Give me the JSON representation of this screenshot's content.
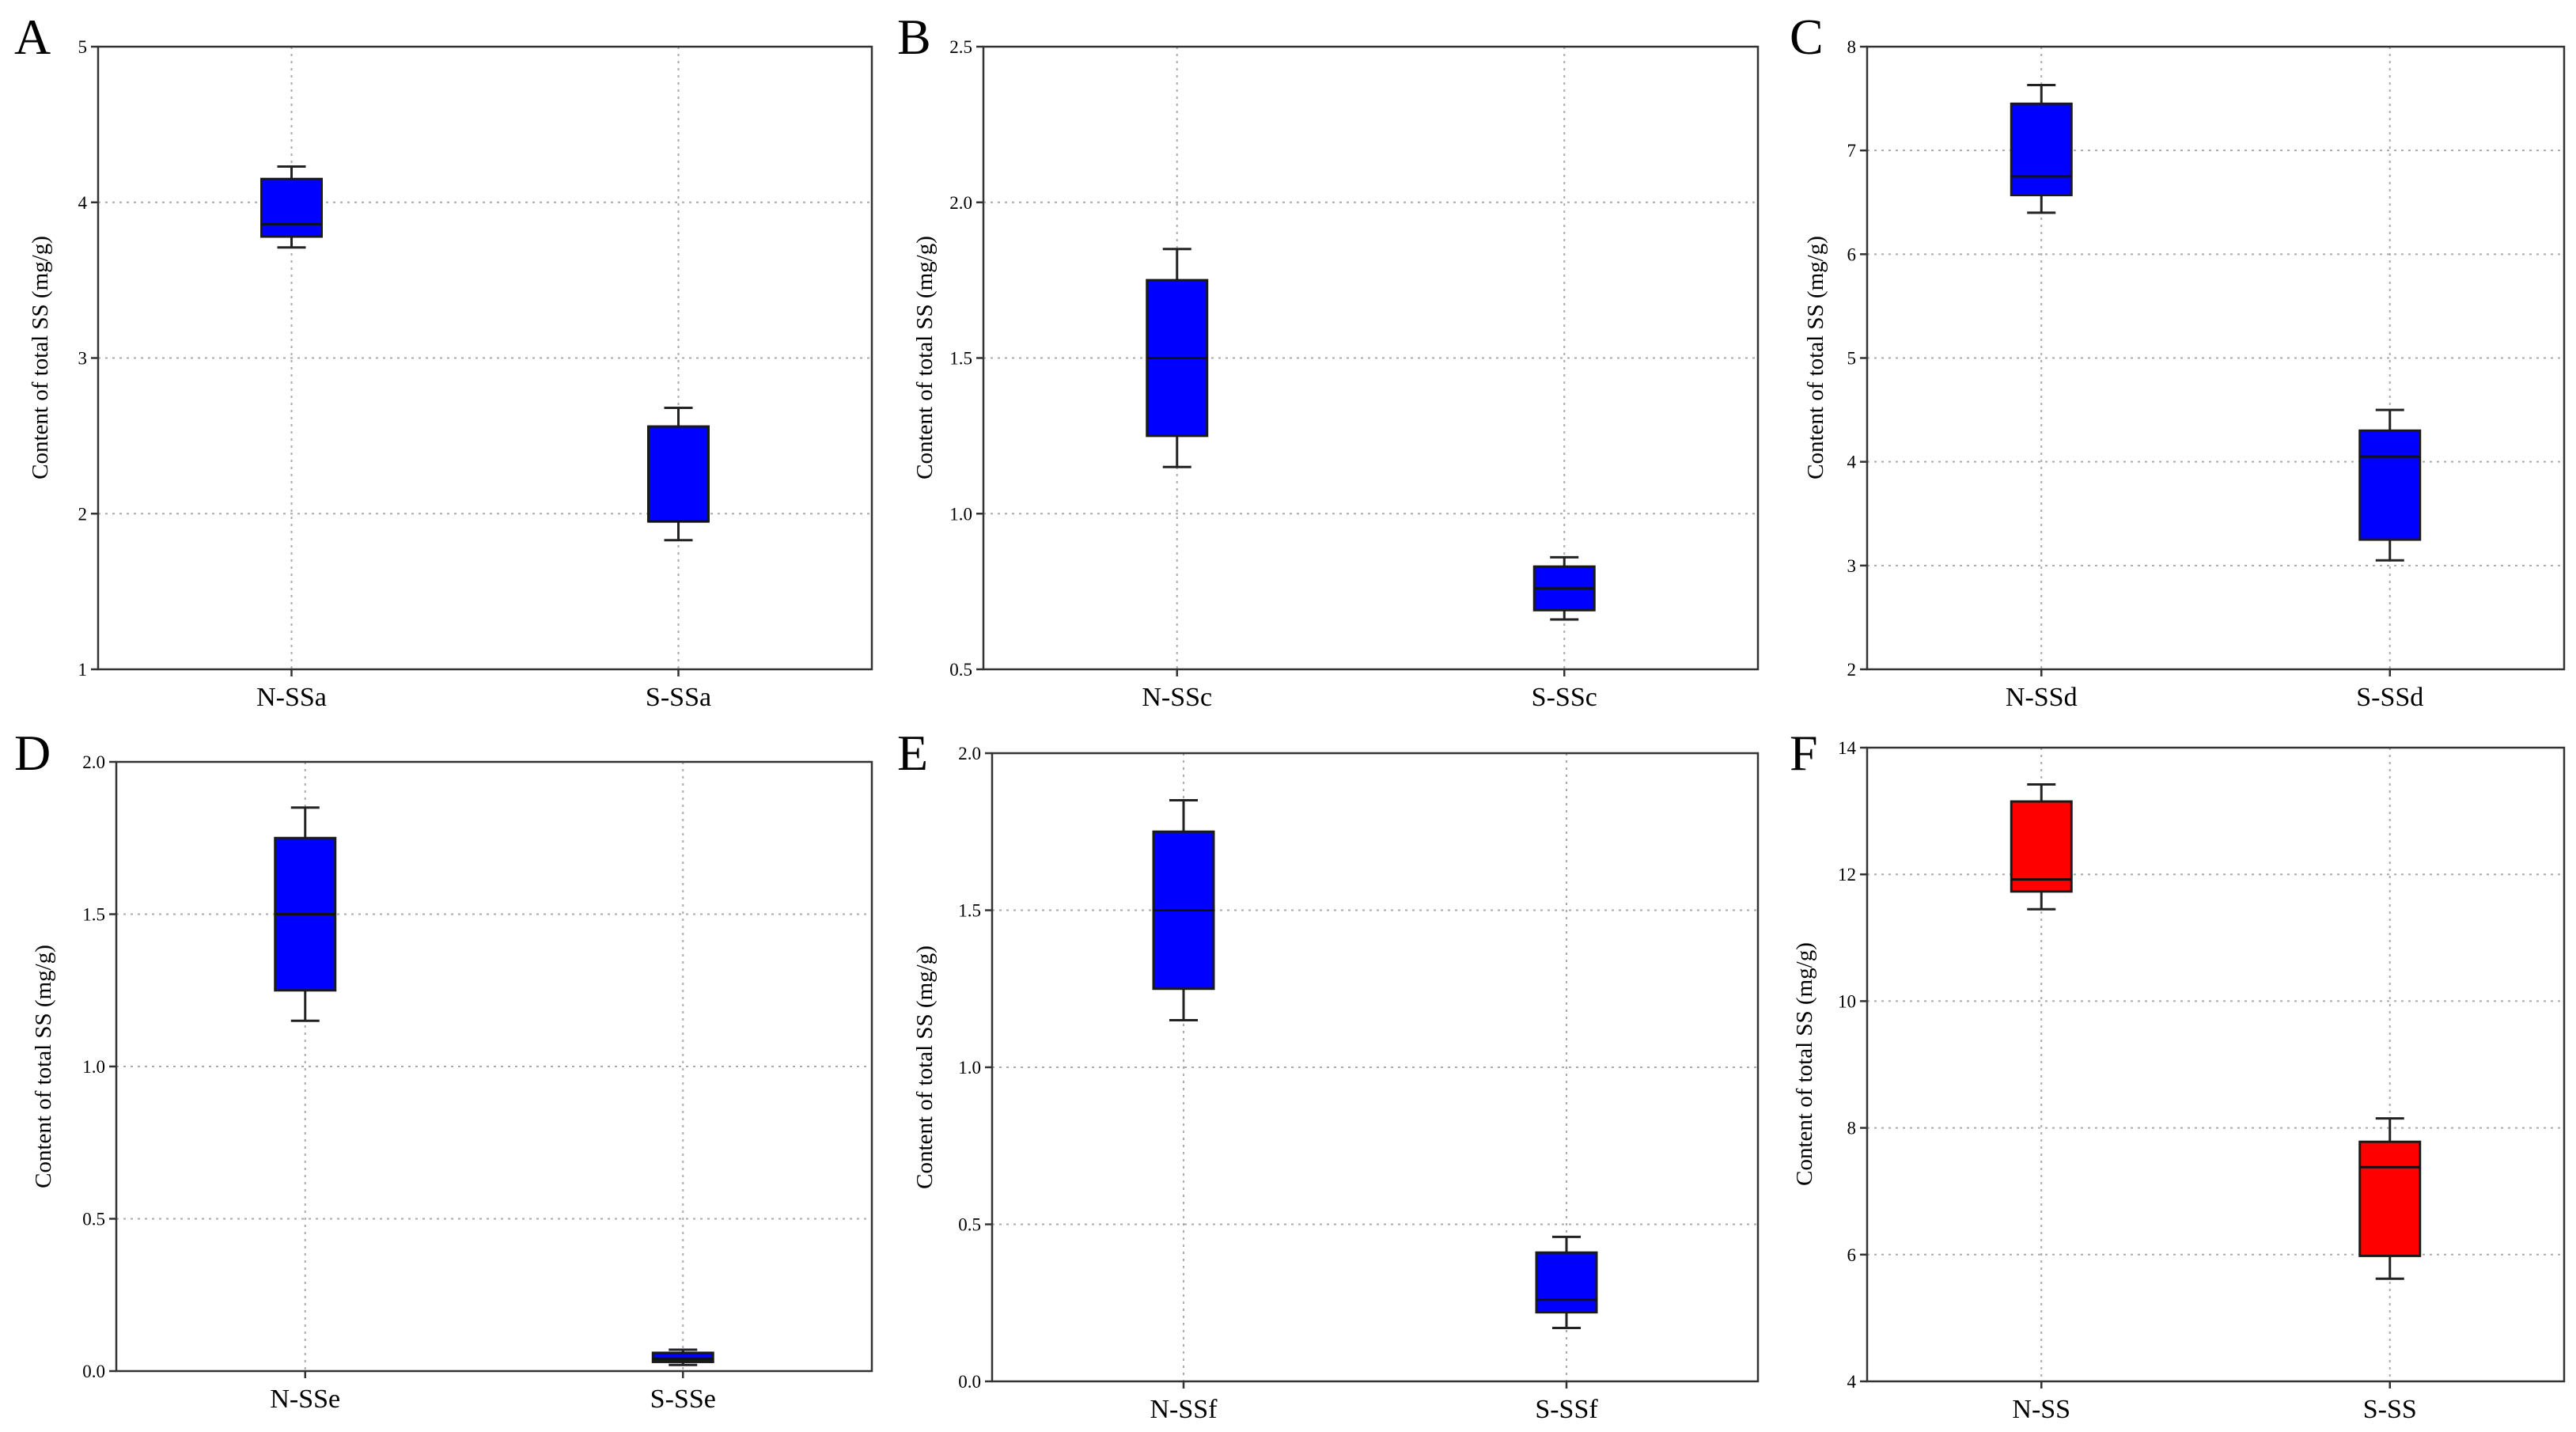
{
  "chart_data": [
    {
      "panel": "A",
      "type": "box",
      "ylabel": "Content of total SS (mg/g)",
      "ylim": [
        1,
        5
      ],
      "yticks": [
        1,
        2,
        3,
        4,
        5
      ],
      "yticklabels": [
        "1",
        "2",
        "3",
        "4",
        "5"
      ],
      "categories": [
        "N-SSa",
        "S-SSa"
      ],
      "box_color": "#0000ff",
      "boxes": [
        {
          "min": 3.71,
          "q1": 3.78,
          "median": 3.86,
          "q3": 4.15,
          "max": 4.23
        },
        {
          "min": 1.83,
          "q1": 1.95,
          "median": 1.95,
          "q3": 2.56,
          "max": 2.68
        }
      ]
    },
    {
      "panel": "B",
      "type": "box",
      "ylabel": "Content of total SS (mg/g)",
      "ylim": [
        0.5,
        2.5
      ],
      "yticks": [
        0.5,
        1.0,
        1.5,
        2.0,
        2.5
      ],
      "yticklabels": [
        "0.5",
        "1.0",
        "1.5",
        "2.0",
        "2.5"
      ],
      "categories": [
        "N-SSc",
        "S-SSc"
      ],
      "box_color": "#0000ff",
      "boxes": [
        {
          "min": 1.15,
          "q1": 1.25,
          "median": 1.5,
          "q3": 1.75,
          "max": 1.85
        },
        {
          "min": 0.66,
          "q1": 0.69,
          "median": 0.76,
          "q3": 0.83,
          "max": 0.86
        }
      ]
    },
    {
      "panel": "C",
      "type": "box",
      "ylabel": "Content of total SS (mg/g)",
      "ylim": [
        2,
        8
      ],
      "yticks": [
        2,
        3,
        4,
        5,
        6,
        7,
        8
      ],
      "yticklabels": [
        "2",
        "3",
        "4",
        "5",
        "6",
        "7",
        "8"
      ],
      "categories": [
        "N-SSd",
        "S-SSd"
      ],
      "box_color": "#0000ff",
      "boxes": [
        {
          "min": 6.4,
          "q1": 6.57,
          "median": 6.75,
          "q3": 7.45,
          "max": 7.63
        },
        {
          "min": 3.05,
          "q1": 3.25,
          "median": 4.05,
          "q3": 4.3,
          "max": 4.5
        }
      ]
    },
    {
      "panel": "D",
      "type": "box",
      "ylabel": "Content of total SS (mg/g)",
      "ylim": [
        0.0,
        2.0
      ],
      "yticks": [
        0.0,
        0.5,
        1.0,
        1.5,
        2.0
      ],
      "yticklabels": [
        "0.0",
        "0.5",
        "1.0",
        "1.5",
        "2.0"
      ],
      "categories": [
        "N-SSe",
        "S-SSe"
      ],
      "box_color": "#0000ff",
      "boxes": [
        {
          "min": 1.15,
          "q1": 1.25,
          "median": 1.5,
          "q3": 1.75,
          "max": 1.85
        },
        {
          "min": 0.02,
          "q1": 0.03,
          "median": 0.04,
          "q3": 0.06,
          "max": 0.07
        }
      ]
    },
    {
      "panel": "E",
      "type": "box",
      "ylabel": "Content of total SS (mg/g)",
      "ylim": [
        0.0,
        2.0
      ],
      "yticks": [
        0.0,
        0.5,
        1.0,
        1.5,
        2.0
      ],
      "yticklabels": [
        "0.0",
        "0.5",
        "1.0",
        "1.5",
        "2.0"
      ],
      "categories": [
        "N-SSf",
        "S-SSf"
      ],
      "box_color": "#0000ff",
      "boxes": [
        {
          "min": 1.15,
          "q1": 1.25,
          "median": 1.5,
          "q3": 1.75,
          "max": 1.85
        },
        {
          "min": 0.17,
          "q1": 0.22,
          "median": 0.26,
          "q3": 0.41,
          "max": 0.46
        }
      ]
    },
    {
      "panel": "F",
      "type": "box",
      "ylabel": "Content of total SS (mg/g)",
      "ylim": [
        4,
        14
      ],
      "yticks": [
        4,
        6,
        8,
        10,
        12,
        14
      ],
      "yticklabels": [
        "4",
        "6",
        "8",
        "10",
        "12",
        "14"
      ],
      "categories": [
        "N-SS",
        "S-SS"
      ],
      "box_color": "#ff0000",
      "boxes": [
        {
          "min": 11.45,
          "q1": 11.73,
          "median": 11.92,
          "q3": 13.15,
          "max": 13.42
        },
        {
          "min": 5.62,
          "q1": 5.98,
          "median": 7.38,
          "q3": 7.78,
          "max": 8.15
        }
      ]
    }
  ]
}
